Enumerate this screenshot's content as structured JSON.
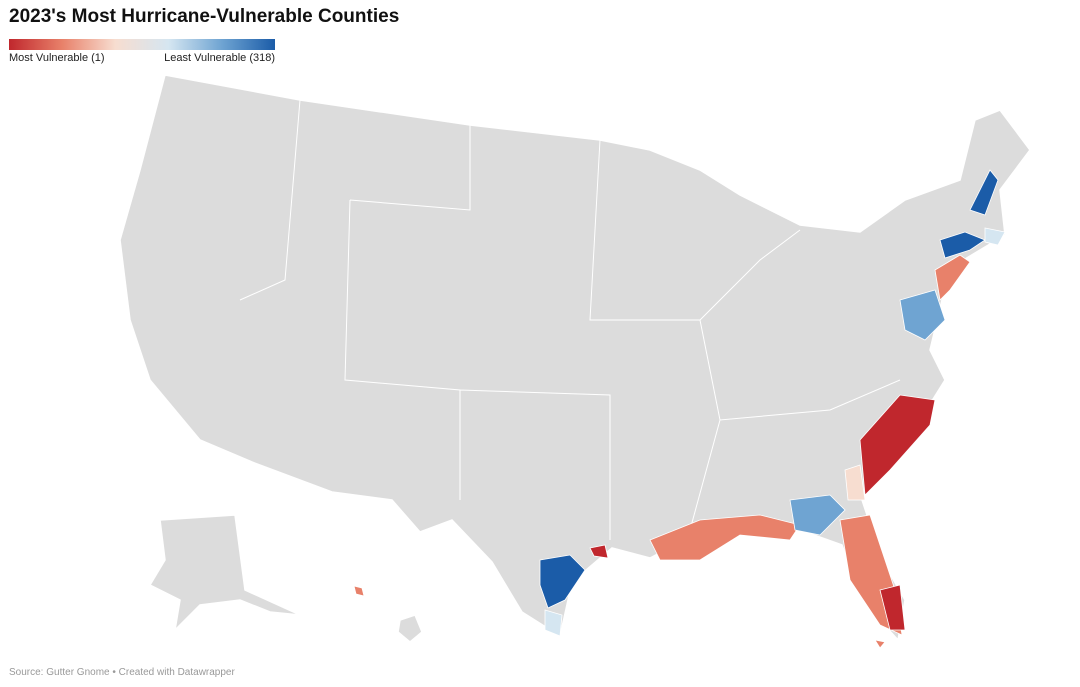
{
  "title": "2023's Most Hurricane-Vulnerable Counties",
  "legend": {
    "min_label": "Most Vulnerable (1)",
    "max_label": "Least Vulnerable (318)",
    "colors": [
      "#c0272d",
      "#e8816a",
      "#f7ddd0",
      "#d5e6f1",
      "#6fa4d2",
      "#1b5ca8"
    ]
  },
  "source": "Source: Gutter Gnome • Created with Datawrapper"
}
